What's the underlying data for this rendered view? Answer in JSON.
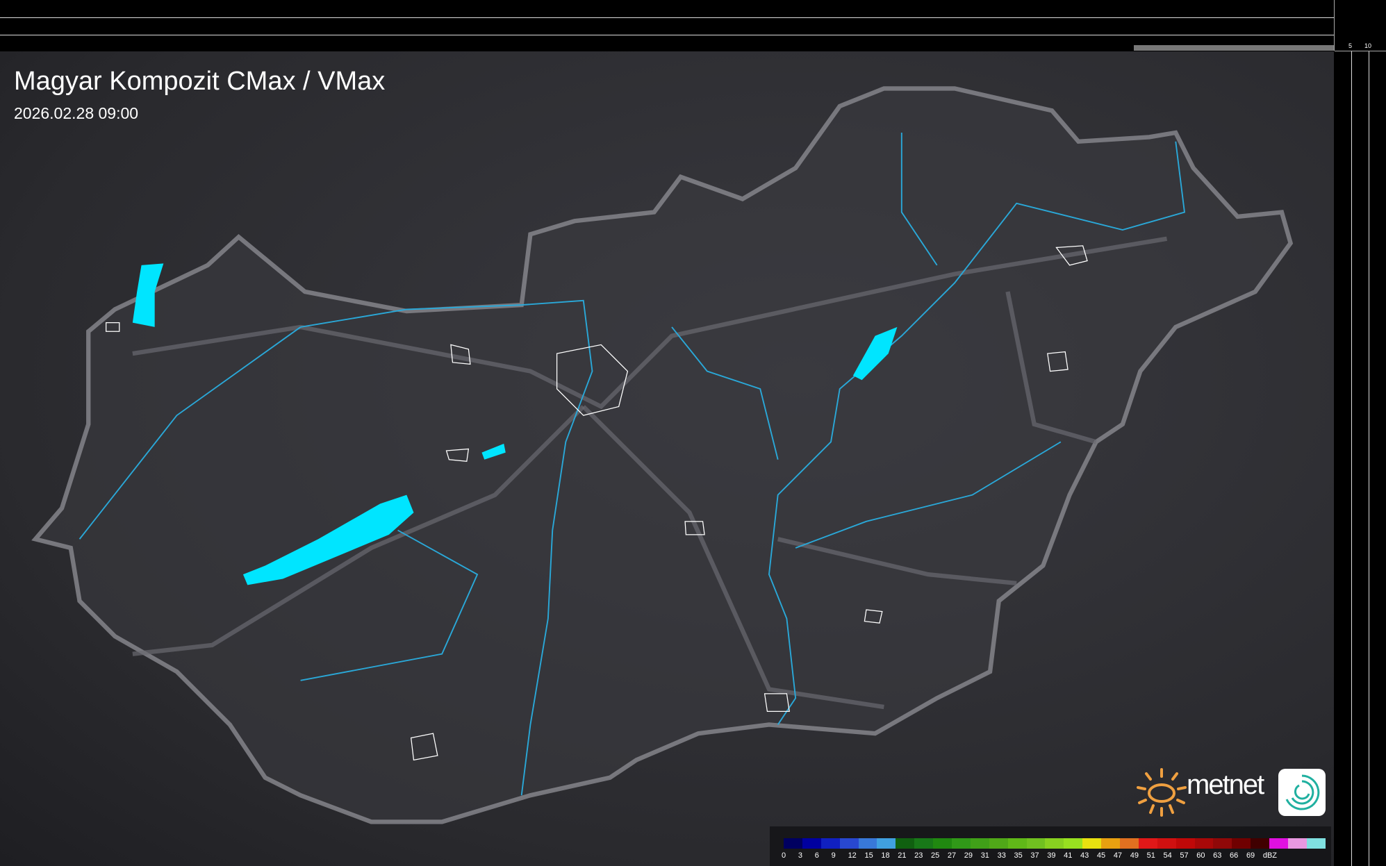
{
  "header": {
    "title": "Magyar Kompozit CMax / VMax",
    "datetime": "2026.02.28 09:00"
  },
  "top_scale": {
    "ticks": [
      "10",
      "5"
    ]
  },
  "right_scale": {
    "ticks": [
      "5",
      "10"
    ]
  },
  "legend": {
    "unit": "dBZ",
    "labels": [
      "0",
      "3",
      "6",
      "9",
      "12",
      "15",
      "18",
      "21",
      "23",
      "25",
      "27",
      "29",
      "31",
      "33",
      "35",
      "37",
      "39",
      "41",
      "43",
      "45",
      "47",
      "49",
      "51",
      "54",
      "57",
      "60",
      "63",
      "66",
      "69"
    ],
    "colors": [
      "#000060",
      "#0000a0",
      "#1020c0",
      "#2848d0",
      "#3878d8",
      "#40a0e0",
      "#106010",
      "#187818",
      "#208810",
      "#309818",
      "#40a018",
      "#50a818",
      "#60b818",
      "#70c020",
      "#88d020",
      "#98e020",
      "#e8e010",
      "#e8a010",
      "#e07020",
      "#e01818",
      "#d01010",
      "#c00808",
      "#a80808",
      "#900808",
      "#700000",
      "#400000",
      "#e010e0",
      "#e898e0",
      "#80e0e0"
    ]
  },
  "branding": {
    "logo_text": "metnet",
    "logo_color": "#f0a040"
  },
  "colors": {
    "water": "#00e5ff",
    "border": "#8a8a90",
    "rivers": "#2aa8d8"
  }
}
